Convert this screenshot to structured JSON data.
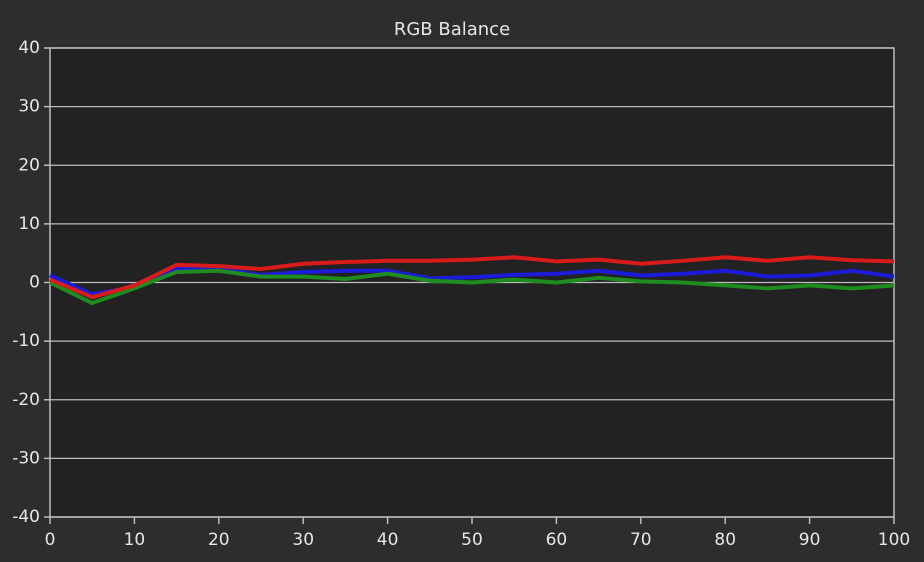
{
  "chart_data": {
    "type": "line",
    "title": "RGB Balance",
    "x": [
      0,
      5,
      10,
      15,
      20,
      25,
      30,
      35,
      40,
      45,
      50,
      55,
      60,
      65,
      70,
      75,
      80,
      85,
      90,
      95,
      100
    ],
    "series": [
      {
        "name": "Red",
        "color": "#d81c1c",
        "values": [
          0.5,
          -2.5,
          -0.5,
          3,
          2.8,
          2.3,
          3.2,
          3.5,
          3.7,
          3.7,
          3.9,
          4.3,
          3.6,
          3.9,
          3.2,
          3.7,
          4.3,
          3.7,
          4.3,
          3.8,
          3.6
        ]
      },
      {
        "name": "Green",
        "color": "#1e8c1e",
        "values": [
          0,
          -3.5,
          -1,
          1.8,
          2,
          1,
          1,
          0.6,
          1.5,
          0.3,
          0,
          0.5,
          0,
          0.8,
          0.2,
          0,
          -0.5,
          -1,
          -0.5,
          -1,
          -0.5
        ]
      },
      {
        "name": "Blue",
        "color": "#1c1cd8",
        "values": [
          1.2,
          -2,
          -0.8,
          2.5,
          2.3,
          1.3,
          1.8,
          2,
          2,
          0.7,
          0.9,
          1.3,
          1.5,
          2,
          1.2,
          1.5,
          2,
          1,
          1.2,
          2,
          1
        ]
      }
    ],
    "xlim": [
      0,
      100
    ],
    "xticks": [
      0,
      10,
      20,
      30,
      40,
      50,
      60,
      70,
      80,
      90,
      100
    ],
    "ylim": [
      -40,
      40
    ],
    "yticks": [
      -40,
      -30,
      -20,
      -10,
      0,
      10,
      20,
      30,
      40
    ],
    "grid": true
  }
}
